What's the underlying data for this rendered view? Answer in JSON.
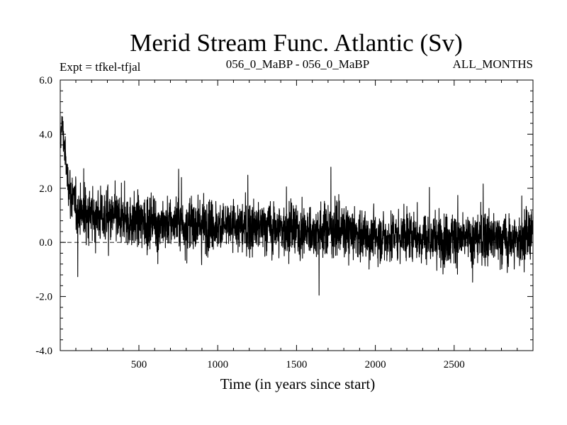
{
  "chart_data": {
    "type": "line",
    "title": "Merid Stream Func. Atlantic (Sv)",
    "subtitle_left": "Expt = tfkel-tfjal",
    "subtitle_center": "056_0_MaBP - 056_0_MaBP",
    "subtitle_right": "ALL_MONTHS",
    "xlabel": "Time (in years since start)",
    "ylabel": "",
    "xlim": [
      1,
      3000
    ],
    "ylim": [
      -4.0,
      6.0
    ],
    "x_ticks": [
      500,
      1000,
      1500,
      2000,
      2500
    ],
    "x_tick_labels": [
      "500",
      "1000",
      "1500",
      "2000",
      "2500"
    ],
    "y_ticks": [
      -4.0,
      -2.0,
      0.0,
      2.0,
      4.0,
      6.0
    ],
    "y_tick_labels": [
      "-4.0",
      "-2.0",
      "0.0",
      "2.0",
      "4.0",
      "6.0"
    ],
    "reference_line": 0.0,
    "grid": false,
    "series": [
      {
        "x": [
          1,
          10,
          20,
          30,
          40,
          50,
          60,
          70,
          80,
          90,
          100,
          120,
          140,
          160,
          180,
          200,
          250,
          300,
          350,
          400,
          450,
          500,
          550,
          600,
          650,
          700,
          750,
          800,
          850,
          900,
          950,
          1000,
          1100,
          1200,
          1300,
          1400,
          1500,
          1600,
          1700,
          1800,
          1900,
          2000,
          2100,
          2200,
          2300,
          2400,
          2500,
          2600,
          2700,
          2800,
          2900,
          3000
        ],
        "y": [
          3.2,
          4.6,
          3.9,
          3.4,
          2.7,
          2.3,
          2.0,
          1.8,
          1.6,
          1.4,
          1.3,
          1.2,
          1.1,
          1.1,
          1.0,
          1.0,
          1.0,
          0.9,
          0.9,
          0.8,
          0.8,
          0.8,
          0.7,
          0.8,
          0.7,
          0.7,
          0.8,
          0.6,
          0.7,
          0.7,
          0.6,
          0.6,
          0.6,
          0.5,
          0.6,
          0.5,
          0.4,
          0.4,
          0.5,
          0.4,
          0.3,
          0.2,
          0.2,
          0.3,
          0.2,
          0.1,
          0.2,
          0.1,
          0.2,
          0.1,
          0.1,
          0.2
        ],
        "noise_amplitude": 0.9,
        "color": "#000000"
      }
    ]
  }
}
